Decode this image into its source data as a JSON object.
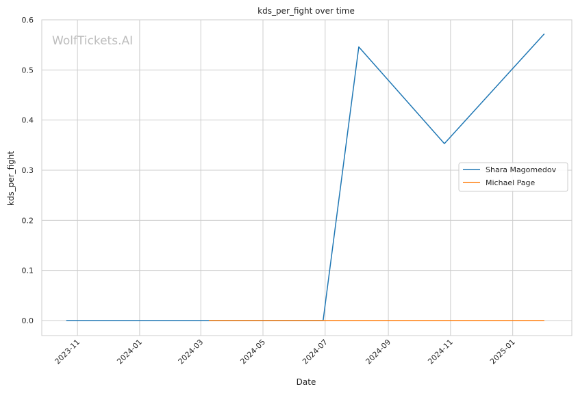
{
  "chart_data": {
    "type": "line",
    "title": "kds_per_fight over time",
    "xlabel": "Date",
    "ylabel": "kds_per_fight",
    "watermark": "WolfTickets.AI",
    "grid": true,
    "legend_position": "right",
    "xlim": [
      "2023-09-27",
      "2025-02-28"
    ],
    "ylim": [
      -0.03,
      0.6
    ],
    "x_ticks": [
      "2023-11",
      "2024-01",
      "2024-03",
      "2024-05",
      "2024-07",
      "2024-09",
      "2024-11",
      "2025-01"
    ],
    "y_ticks": [
      "0.0",
      "0.1",
      "0.2",
      "0.3",
      "0.4",
      "0.5",
      "0.6"
    ],
    "series": [
      {
        "name": "Shara Magomedov",
        "color": "#1f77b4",
        "points": [
          {
            "x": "2023-10-21",
            "y": 0.0
          },
          {
            "x": "2024-03-09",
            "y": 0.0
          },
          {
            "x": "2024-06-29",
            "y": 0.0
          },
          {
            "x": "2024-08-03",
            "y": 0.546
          },
          {
            "x": "2024-10-26",
            "y": 0.353
          },
          {
            "x": "2025-02-01",
            "y": 0.572
          }
        ]
      },
      {
        "name": "Michael Page",
        "color": "#ff7f0e",
        "points": [
          {
            "x": "2024-03-09",
            "y": 0.0
          },
          {
            "x": "2024-06-29",
            "y": 0.0
          },
          {
            "x": "2025-02-01",
            "y": 0.0
          }
        ]
      }
    ]
  }
}
